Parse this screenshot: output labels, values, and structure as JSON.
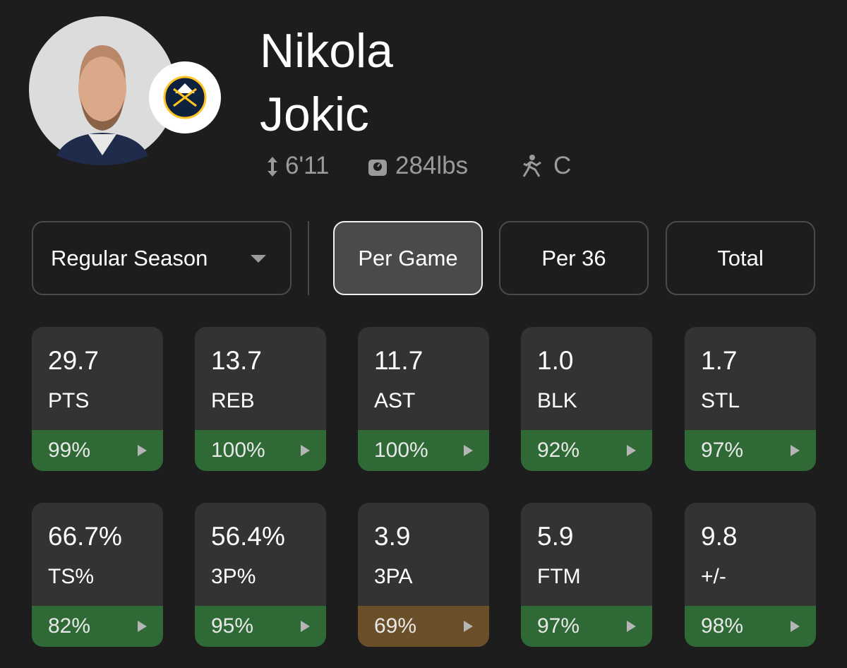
{
  "player": {
    "first_name": "Nikola",
    "last_name": "Jokic",
    "height": "6'11",
    "weight": "284lbs",
    "position": "C"
  },
  "filters": {
    "season": "Regular Season",
    "tabs": [
      "Per Game",
      "Per 36",
      "Total"
    ],
    "selected_tab": 0
  },
  "stats": [
    {
      "value": "29.7",
      "label": "PTS",
      "percentile": "99%",
      "color": "#2f6a36"
    },
    {
      "value": "13.7",
      "label": "REB",
      "percentile": "100%",
      "color": "#2f6a36"
    },
    {
      "value": "11.7",
      "label": "AST",
      "percentile": "100%",
      "color": "#2f6a36"
    },
    {
      "value": "1.0",
      "label": "BLK",
      "percentile": "92%",
      "color": "#2f6a36"
    },
    {
      "value": "1.7",
      "label": "STL",
      "percentile": "97%",
      "color": "#2f6a36"
    },
    {
      "value": "66.7%",
      "label": "TS%",
      "percentile": "82%",
      "color": "#2f6a36"
    },
    {
      "value": "56.4%",
      "label": "3P%",
      "percentile": "95%",
      "color": "#2f6a36"
    },
    {
      "value": "3.9",
      "label": "3PA",
      "percentile": "69%",
      "color": "#6b4f28"
    },
    {
      "value": "5.9",
      "label": "FTM",
      "percentile": "97%",
      "color": "#2f6a36"
    },
    {
      "value": "9.8",
      "label": "+/-",
      "percentile": "98%",
      "color": "#2f6a36"
    }
  ]
}
